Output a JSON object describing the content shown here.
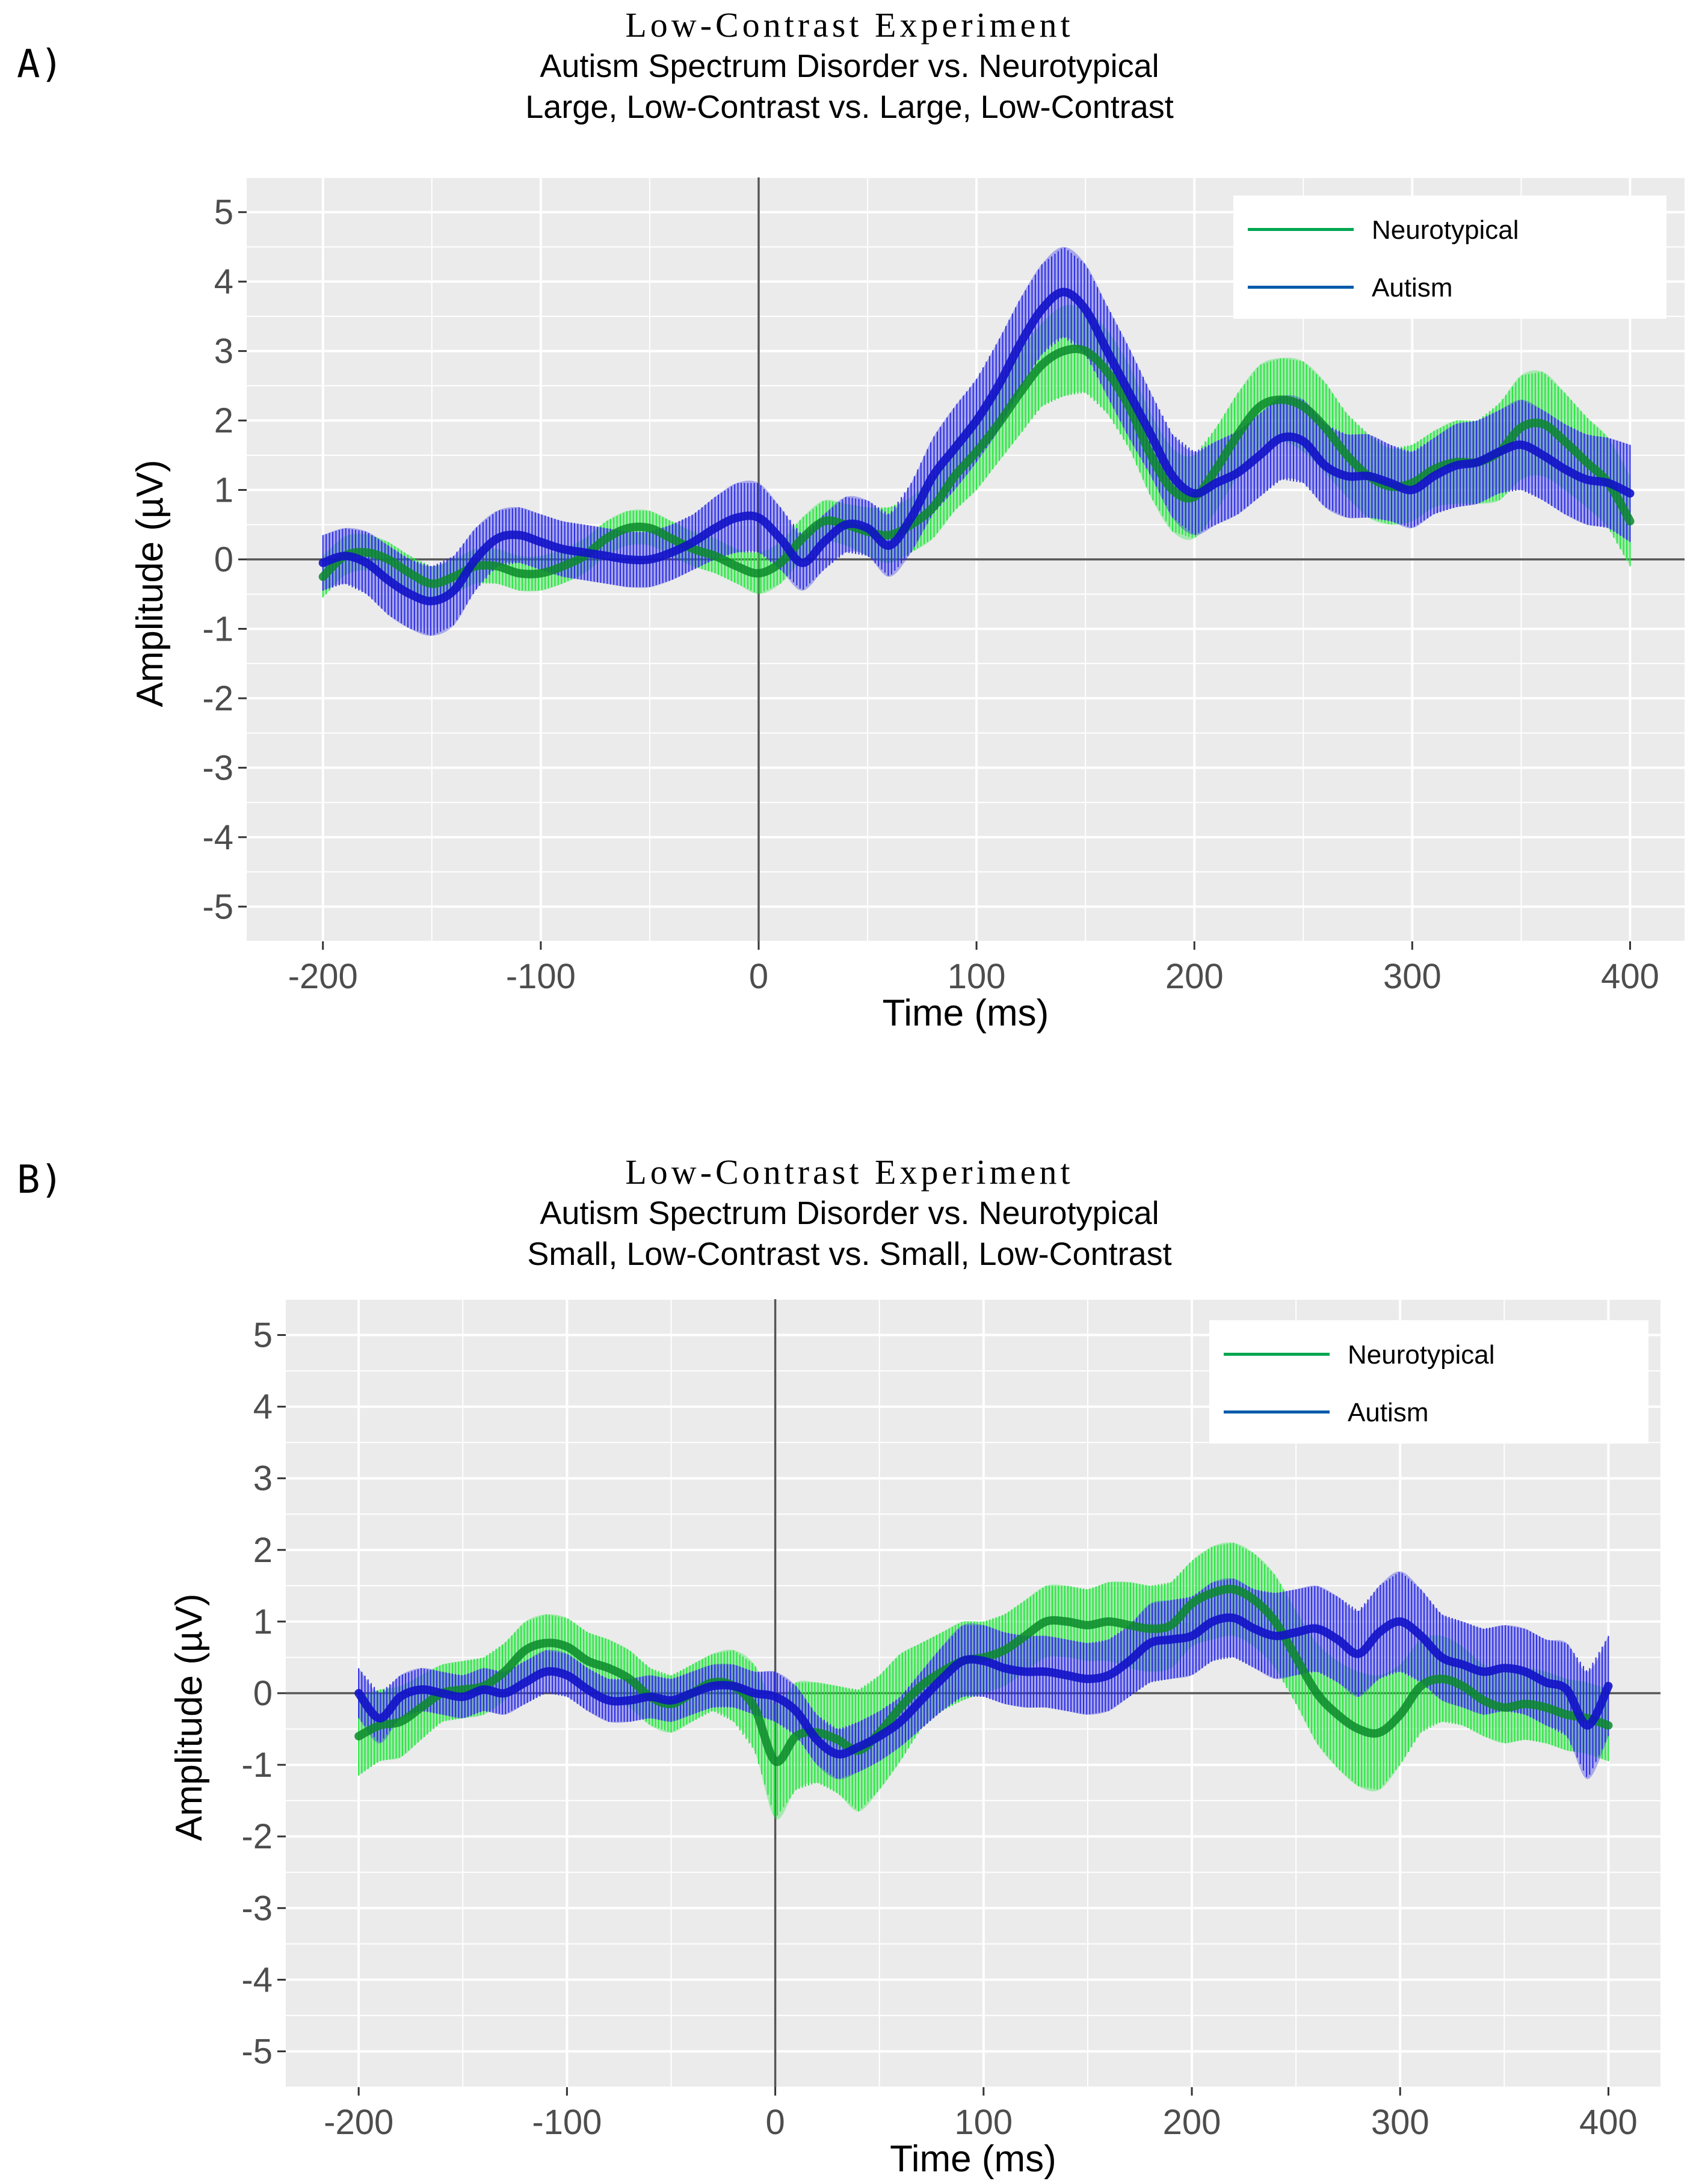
{
  "chart_data": [
    {
      "type": "line",
      "panel_label": "A)",
      "title": "Low-Contrast Experiment",
      "subtitle": [
        "Autism Spectrum Disorder vs. Neurotypical",
        "Large, Low-Contrast vs. Large, Low-Contrast"
      ],
      "xlabel": "Time (ms)",
      "ylabel": "Amplitude (µV)",
      "xlim": [
        -235,
        425
      ],
      "ylim": [
        -5.5,
        5.5
      ],
      "xticks": [
        -200,
        -100,
        0,
        100,
        200,
        300,
        400
      ],
      "yticks": [
        5,
        4,
        3,
        2,
        1,
        0,
        -1,
        -2,
        -3,
        -4,
        -5
      ],
      "grid": true,
      "legend_position": "top-right",
      "series": [
        {
          "name": "Neurotypical",
          "color": "#00A651",
          "band_color": "#22E63C",
          "x": [
            -200,
            -190,
            -180,
            -170,
            -160,
            -150,
            -140,
            -130,
            -120,
            -110,
            -100,
            -90,
            -80,
            -70,
            -60,
            -50,
            -40,
            -30,
            -20,
            -10,
            0,
            10,
            20,
            30,
            40,
            50,
            60,
            70,
            80,
            90,
            100,
            110,
            120,
            130,
            140,
            150,
            160,
            170,
            180,
            190,
            200,
            210,
            220,
            230,
            240,
            250,
            260,
            270,
            280,
            290,
            300,
            310,
            320,
            330,
            340,
            350,
            360,
            370,
            380,
            390,
            400
          ],
          "y": [
            -0.25,
            0.05,
            0.1,
            0.0,
            -0.2,
            -0.35,
            -0.25,
            -0.1,
            -0.1,
            -0.2,
            -0.2,
            -0.1,
            0.05,
            0.3,
            0.45,
            0.45,
            0.3,
            0.15,
            0.05,
            -0.1,
            -0.2,
            -0.05,
            0.3,
            0.55,
            0.5,
            0.4,
            0.35,
            0.5,
            0.75,
            1.2,
            1.55,
            1.95,
            2.4,
            2.8,
            3.0,
            3.0,
            2.7,
            2.2,
            1.5,
            1.0,
            0.9,
            1.3,
            1.8,
            2.2,
            2.3,
            2.2,
            1.9,
            1.5,
            1.2,
            1.05,
            1.1,
            1.3,
            1.4,
            1.4,
            1.55,
            1.9,
            1.95,
            1.7,
            1.4,
            1.1,
            0.55
          ],
          "error": [
            0.3,
            0.28,
            0.26,
            0.25,
            0.25,
            0.25,
            0.25,
            0.25,
            0.25,
            0.25,
            0.25,
            0.25,
            0.25,
            0.25,
            0.25,
            0.25,
            0.25,
            0.25,
            0.25,
            0.25,
            0.3,
            0.3,
            0.3,
            0.3,
            0.3,
            0.35,
            0.4,
            0.4,
            0.45,
            0.5,
            0.55,
            0.55,
            0.6,
            0.6,
            0.65,
            0.6,
            0.6,
            0.6,
            0.6,
            0.6,
            0.6,
            0.6,
            0.6,
            0.6,
            0.6,
            0.65,
            0.65,
            0.6,
            0.6,
            0.55,
            0.55,
            0.55,
            0.6,
            0.6,
            0.7,
            0.75,
            0.75,
            0.7,
            0.65,
            0.65,
            0.65
          ]
        },
        {
          "name": "Autism",
          "color": "#005BAA",
          "band_color": "#2A2AE6",
          "x": [
            -200,
            -190,
            -180,
            -170,
            -160,
            -150,
            -140,
            -130,
            -120,
            -110,
            -100,
            -90,
            -80,
            -70,
            -60,
            -50,
            -40,
            -30,
            -20,
            -10,
            0,
            10,
            20,
            30,
            40,
            50,
            60,
            70,
            80,
            90,
            100,
            110,
            120,
            130,
            140,
            150,
            160,
            170,
            180,
            190,
            200,
            210,
            220,
            230,
            240,
            250,
            260,
            270,
            280,
            290,
            300,
            310,
            320,
            330,
            340,
            350,
            360,
            370,
            380,
            390,
            400
          ],
          "y": [
            -0.05,
            0.05,
            -0.05,
            -0.3,
            -0.5,
            -0.6,
            -0.45,
            0.0,
            0.3,
            0.35,
            0.25,
            0.15,
            0.1,
            0.05,
            0.0,
            0.0,
            0.1,
            0.25,
            0.45,
            0.6,
            0.6,
            0.3,
            -0.05,
            0.25,
            0.5,
            0.45,
            0.2,
            0.6,
            1.2,
            1.6,
            2.0,
            2.5,
            3.1,
            3.6,
            3.85,
            3.6,
            3.0,
            2.4,
            1.8,
            1.2,
            0.95,
            1.1,
            1.25,
            1.5,
            1.75,
            1.7,
            1.35,
            1.2,
            1.2,
            1.1,
            1.0,
            1.2,
            1.35,
            1.4,
            1.55,
            1.65,
            1.5,
            1.3,
            1.15,
            1.1,
            0.95
          ],
          "error": [
            0.4,
            0.4,
            0.45,
            0.5,
            0.5,
            0.5,
            0.5,
            0.45,
            0.4,
            0.4,
            0.4,
            0.4,
            0.4,
            0.4,
            0.4,
            0.4,
            0.4,
            0.4,
            0.45,
            0.5,
            0.5,
            0.45,
            0.4,
            0.4,
            0.4,
            0.4,
            0.45,
            0.5,
            0.55,
            0.6,
            0.6,
            0.65,
            0.65,
            0.65,
            0.65,
            0.65,
            0.65,
            0.65,
            0.6,
            0.6,
            0.6,
            0.6,
            0.6,
            0.6,
            0.6,
            0.6,
            0.6,
            0.6,
            0.6,
            0.55,
            0.55,
            0.55,
            0.6,
            0.6,
            0.6,
            0.65,
            0.65,
            0.65,
            0.65,
            0.65,
            0.7
          ]
        }
      ]
    },
    {
      "type": "line",
      "panel_label": "B)",
      "title": "Low-Contrast Experiment",
      "subtitle": [
        "Autism Spectrum Disorder vs. Neurotypical",
        "Small, Low-Contrast vs. Small, Low-Contrast"
      ],
      "xlabel": "Time (ms)",
      "ylabel": "Amplitude (µV)",
      "xlim": [
        -235,
        425
      ],
      "ylim": [
        -5.5,
        5.5
      ],
      "xticks": [
        -200,
        -100,
        0,
        100,
        200,
        300,
        400
      ],
      "yticks": [
        5,
        4,
        3,
        2,
        1,
        0,
        -1,
        -2,
        -3,
        -4,
        -5
      ],
      "grid": true,
      "legend_position": "top-right",
      "series": [
        {
          "name": "Neurotypical",
          "color": "#00A651",
          "band_color": "#22E63C",
          "x": [
            -200,
            -190,
            -180,
            -170,
            -160,
            -150,
            -140,
            -130,
            -120,
            -110,
            -100,
            -90,
            -80,
            -70,
            -60,
            -50,
            -40,
            -30,
            -20,
            -10,
            0,
            10,
            20,
            30,
            40,
            50,
            60,
            70,
            80,
            90,
            100,
            110,
            120,
            130,
            140,
            150,
            160,
            170,
            180,
            190,
            200,
            210,
            220,
            230,
            240,
            250,
            260,
            270,
            280,
            290,
            300,
            310,
            320,
            330,
            340,
            350,
            360,
            370,
            380,
            390,
            400
          ],
          "y": [
            -0.6,
            -0.45,
            -0.4,
            -0.2,
            0.0,
            0.05,
            0.1,
            0.3,
            0.6,
            0.7,
            0.65,
            0.45,
            0.35,
            0.2,
            -0.05,
            -0.15,
            0.0,
            0.15,
            0.1,
            -0.2,
            -0.95,
            -0.6,
            -0.55,
            -0.65,
            -0.8,
            -0.55,
            -0.2,
            0.1,
            0.3,
            0.45,
            0.5,
            0.6,
            0.8,
            1.0,
            1.0,
            0.95,
            1.0,
            0.95,
            0.9,
            0.95,
            1.25,
            1.4,
            1.45,
            1.3,
            1.0,
            0.5,
            0.0,
            -0.3,
            -0.5,
            -0.55,
            -0.3,
            0.1,
            0.2,
            0.1,
            -0.1,
            -0.2,
            -0.15,
            -0.2,
            -0.3,
            -0.35,
            -0.45
          ],
          "error": [
            0.55,
            0.5,
            0.5,
            0.45,
            0.4,
            0.4,
            0.4,
            0.4,
            0.4,
            0.4,
            0.4,
            0.4,
            0.4,
            0.4,
            0.4,
            0.4,
            0.4,
            0.4,
            0.5,
            0.6,
            0.8,
            0.75,
            0.7,
            0.75,
            0.85,
            0.8,
            0.75,
            0.6,
            0.55,
            0.55,
            0.5,
            0.5,
            0.5,
            0.5,
            0.5,
            0.5,
            0.55,
            0.6,
            0.6,
            0.6,
            0.6,
            0.65,
            0.65,
            0.65,
            0.65,
            0.65,
            0.7,
            0.75,
            0.8,
            0.8,
            0.7,
            0.65,
            0.6,
            0.55,
            0.5,
            0.5,
            0.5,
            0.5,
            0.5,
            0.5,
            0.5
          ]
        },
        {
          "name": "Autism",
          "color": "#005BAA",
          "band_color": "#2A2AE6",
          "x": [
            -200,
            -190,
            -180,
            -170,
            -160,
            -150,
            -140,
            -130,
            -120,
            -110,
            -100,
            -90,
            -80,
            -70,
            -60,
            -50,
            -40,
            -30,
            -20,
            -10,
            0,
            10,
            20,
            30,
            40,
            50,
            60,
            70,
            80,
            90,
            100,
            110,
            120,
            130,
            140,
            150,
            160,
            170,
            180,
            190,
            200,
            210,
            220,
            230,
            240,
            250,
            260,
            270,
            280,
            290,
            300,
            310,
            320,
            330,
            340,
            350,
            360,
            370,
            380,
            390,
            400
          ],
          "y": [
            0.0,
            -0.35,
            -0.05,
            0.05,
            0.0,
            -0.05,
            0.05,
            0.0,
            0.15,
            0.3,
            0.25,
            0.05,
            -0.1,
            -0.1,
            -0.05,
            -0.1,
            0.0,
            0.1,
            0.1,
            0.0,
            -0.05,
            -0.25,
            -0.65,
            -0.85,
            -0.75,
            -0.6,
            -0.4,
            -0.1,
            0.2,
            0.45,
            0.45,
            0.35,
            0.3,
            0.3,
            0.25,
            0.2,
            0.25,
            0.45,
            0.7,
            0.75,
            0.8,
            1.0,
            1.05,
            0.9,
            0.8,
            0.85,
            0.9,
            0.75,
            0.55,
            0.85,
            1.0,
            0.8,
            0.5,
            0.4,
            0.3,
            0.35,
            0.3,
            0.15,
            0.05,
            -0.45,
            0.1
          ],
          "error": [
            0.35,
            0.35,
            0.3,
            0.3,
            0.3,
            0.3,
            0.3,
            0.3,
            0.3,
            0.3,
            0.3,
            0.3,
            0.3,
            0.3,
            0.3,
            0.3,
            0.3,
            0.3,
            0.3,
            0.3,
            0.35,
            0.35,
            0.35,
            0.35,
            0.35,
            0.35,
            0.35,
            0.4,
            0.45,
            0.5,
            0.5,
            0.5,
            0.5,
            0.5,
            0.5,
            0.5,
            0.5,
            0.5,
            0.55,
            0.55,
            0.55,
            0.55,
            0.55,
            0.55,
            0.6,
            0.6,
            0.6,
            0.6,
            0.6,
            0.65,
            0.7,
            0.65,
            0.6,
            0.6,
            0.6,
            0.6,
            0.6,
            0.6,
            0.65,
            0.75,
            0.7
          ]
        }
      ]
    }
  ]
}
